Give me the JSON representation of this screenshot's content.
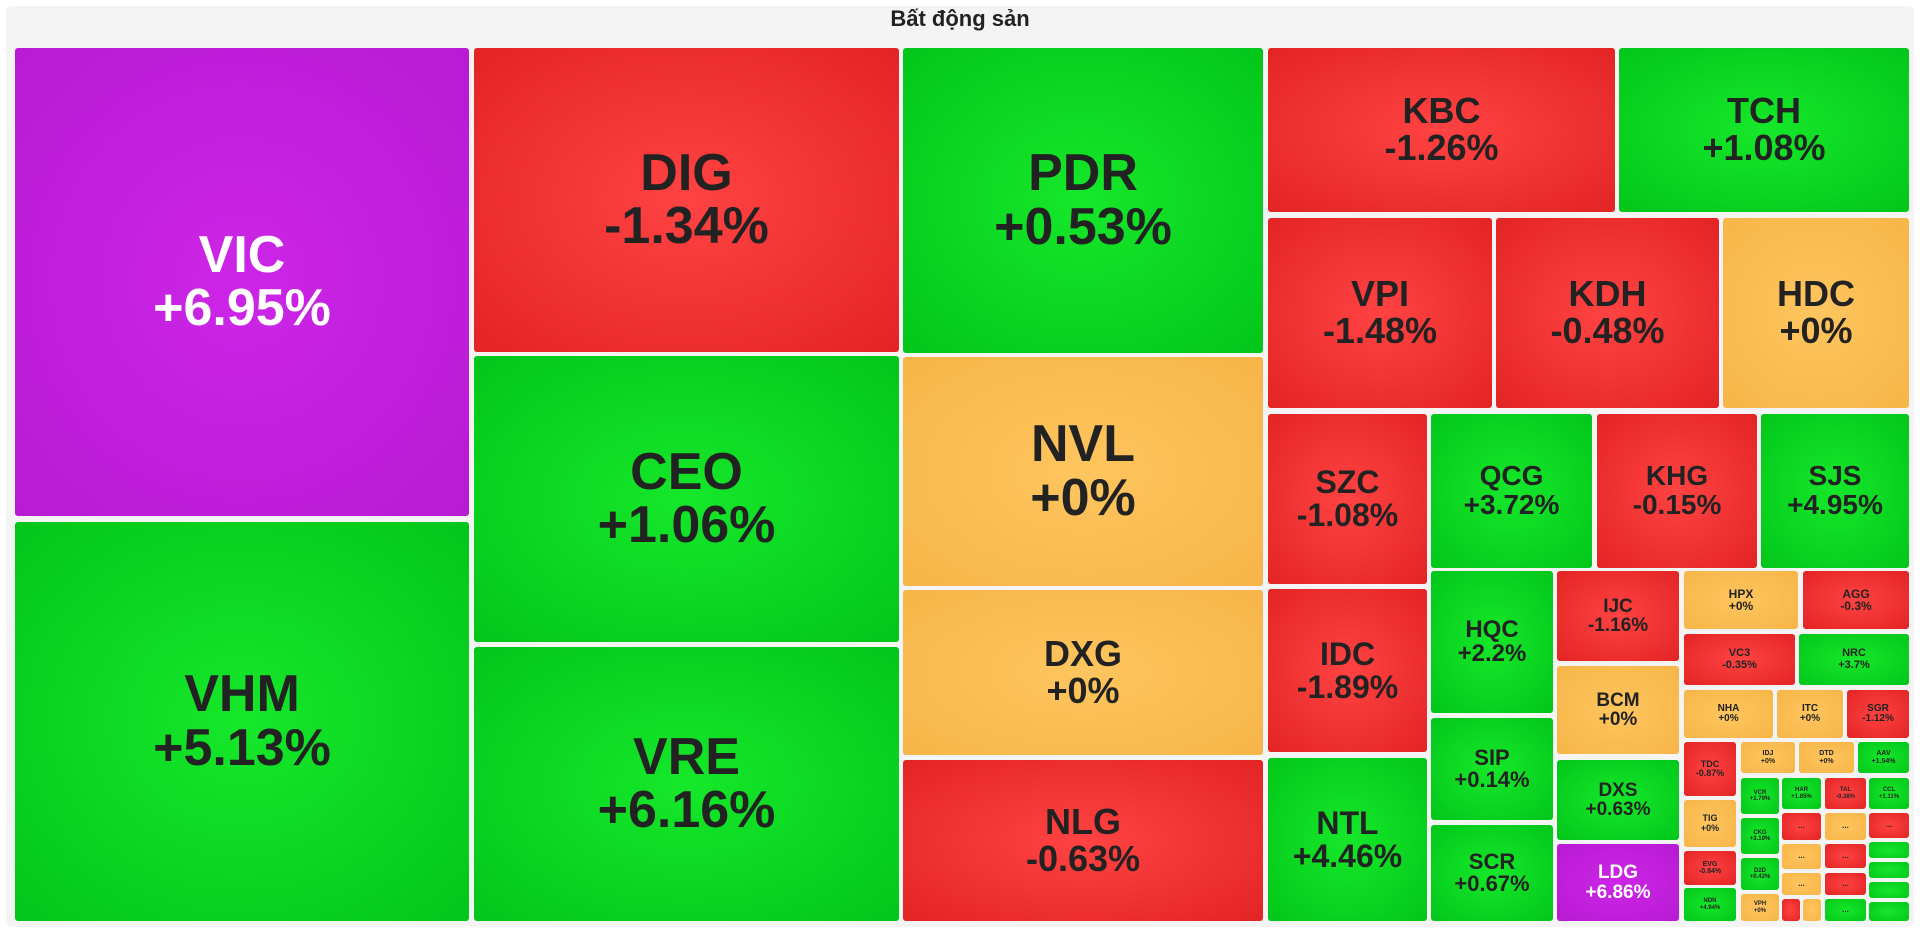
{
  "title": "Bất động sản",
  "colors": {
    "up": "#05cc1f",
    "down": "#f03030",
    "reference": "#f8bb50",
    "ceiling": "#c21fdc",
    "text_dark": "#222222",
    "text_light": "#ffffff"
  },
  "tiles": [
    {
      "ticker": "VIC",
      "change": "+6.95%",
      "status": "ceiling"
    },
    {
      "ticker": "VHM",
      "change": "+5.13%",
      "status": "up"
    },
    {
      "ticker": "DIG",
      "change": "-1.34%",
      "status": "down"
    },
    {
      "ticker": "CEO",
      "change": "+1.06%",
      "status": "up"
    },
    {
      "ticker": "VRE",
      "change": "+6.16%",
      "status": "up"
    },
    {
      "ticker": "PDR",
      "change": "+0.53%",
      "status": "up"
    },
    {
      "ticker": "NVL",
      "change": "+0%",
      "status": "reference"
    },
    {
      "ticker": "DXG",
      "change": "+0%",
      "status": "reference"
    },
    {
      "ticker": "NLG",
      "change": "-0.63%",
      "status": "down"
    },
    {
      "ticker": "KBC",
      "change": "-1.26%",
      "status": "down"
    },
    {
      "ticker": "TCH",
      "change": "+1.08%",
      "status": "up"
    },
    {
      "ticker": "VPI",
      "change": "-1.48%",
      "status": "down"
    },
    {
      "ticker": "KDH",
      "change": "-0.48%",
      "status": "down"
    },
    {
      "ticker": "HDC",
      "change": "+0%",
      "status": "reference"
    },
    {
      "ticker": "SZC",
      "change": "-1.08%",
      "status": "down"
    },
    {
      "ticker": "QCG",
      "change": "+3.72%",
      "status": "up"
    },
    {
      "ticker": "KHG",
      "change": "-0.15%",
      "status": "down"
    },
    {
      "ticker": "SJS",
      "change": "+4.95%",
      "status": "up"
    },
    {
      "ticker": "IDC",
      "change": "-1.89%",
      "status": "down"
    },
    {
      "ticker": "NTL",
      "change": "+4.46%",
      "status": "up"
    },
    {
      "ticker": "HQC",
      "change": "+2.2%",
      "status": "up"
    },
    {
      "ticker": "SIP",
      "change": "+0.14%",
      "status": "up"
    },
    {
      "ticker": "SCR",
      "change": "+0.67%",
      "status": "up"
    },
    {
      "ticker": "IJC",
      "change": "-1.16%",
      "status": "down"
    },
    {
      "ticker": "BCM",
      "change": "+0%",
      "status": "reference"
    },
    {
      "ticker": "DXS",
      "change": "+0.63%",
      "status": "up"
    },
    {
      "ticker": "LDG",
      "change": "+6.86%",
      "status": "ceiling"
    },
    {
      "ticker": "HPX",
      "change": "+0%",
      "status": "reference"
    },
    {
      "ticker": "AGG",
      "change": "-0.3%",
      "status": "down"
    },
    {
      "ticker": "VC3",
      "change": "-0.35%",
      "status": "down"
    },
    {
      "ticker": "NRC",
      "change": "+3.7%",
      "status": "up"
    },
    {
      "ticker": "NHA",
      "change": "+0%",
      "status": "reference"
    },
    {
      "ticker": "ITC",
      "change": "+0%",
      "status": "reference"
    },
    {
      "ticker": "SGR",
      "change": "-1.12%",
      "status": "down"
    },
    {
      "ticker": "TDC",
      "change": "-0.87%",
      "status": "down"
    },
    {
      "ticker": "IDJ",
      "change": "+0%",
      "status": "reference"
    },
    {
      "ticker": "DTD",
      "change": "+0%",
      "status": "reference"
    },
    {
      "ticker": "AAV",
      "change": "+1.54%",
      "status": "up"
    },
    {
      "ticker": "TIG",
      "change": "+0%",
      "status": "reference"
    },
    {
      "ticker": "VCR",
      "change": "+1.79%",
      "status": "up"
    },
    {
      "ticker": "HAR",
      "change": "+1.85%",
      "status": "up"
    },
    {
      "ticker": "TAL",
      "change": "-0.38%",
      "status": "down"
    },
    {
      "ticker": "CCL",
      "change": "+1.11%",
      "status": "up"
    },
    {
      "ticker": "CKG",
      "change": "+3.19%",
      "status": "up"
    },
    {
      "ticker": "EVG",
      "change": "-0.84%",
      "status": "down"
    },
    {
      "ticker": "D2D",
      "change": "+0.42%",
      "status": "up"
    },
    {
      "ticker": "NDN",
      "change": "+4.94%",
      "status": "up"
    },
    {
      "ticker": "VPH",
      "change": "+0%",
      "status": "reference"
    },
    {
      "ticker": "...",
      "change": "",
      "status": "down"
    },
    {
      "ticker": "...",
      "change": "",
      "status": "reference"
    },
    {
      "ticker": "...",
      "change": "",
      "status": "down"
    },
    {
      "ticker": "...",
      "change": "",
      "status": "reference"
    },
    {
      "ticker": "...",
      "change": "",
      "status": "down"
    },
    {
      "ticker": "...",
      "change": "",
      "status": "reference"
    },
    {
      "ticker": "...",
      "change": "",
      "status": "down"
    },
    {
      "ticker": "...",
      "change": "",
      "status": "up"
    },
    {
      "ticker": "",
      "change": "",
      "status": "up"
    },
    {
      "ticker": "",
      "change": "",
      "status": "up"
    },
    {
      "ticker": "",
      "change": "",
      "status": "up"
    },
    {
      "ticker": "",
      "change": "",
      "status": "up"
    },
    {
      "ticker": "",
      "change": "",
      "status": "down"
    },
    {
      "ticker": "",
      "change": "",
      "status": "reference"
    },
    {
      "ticker": "",
      "change": "",
      "status": "up"
    },
    {
      "ticker": "",
      "change": "",
      "status": "down"
    },
    {
      "ticker": "",
      "change": "",
      "status": "up"
    },
    {
      "ticker": "",
      "change": "",
      "status": "up"
    },
    {
      "ticker": "",
      "change": "",
      "status": "down"
    },
    {
      "ticker": "",
      "change": "",
      "status": "up"
    },
    {
      "ticker": "",
      "change": "",
      "status": "reference"
    },
    {
      "ticker": "",
      "change": "",
      "status": "up"
    }
  ]
}
